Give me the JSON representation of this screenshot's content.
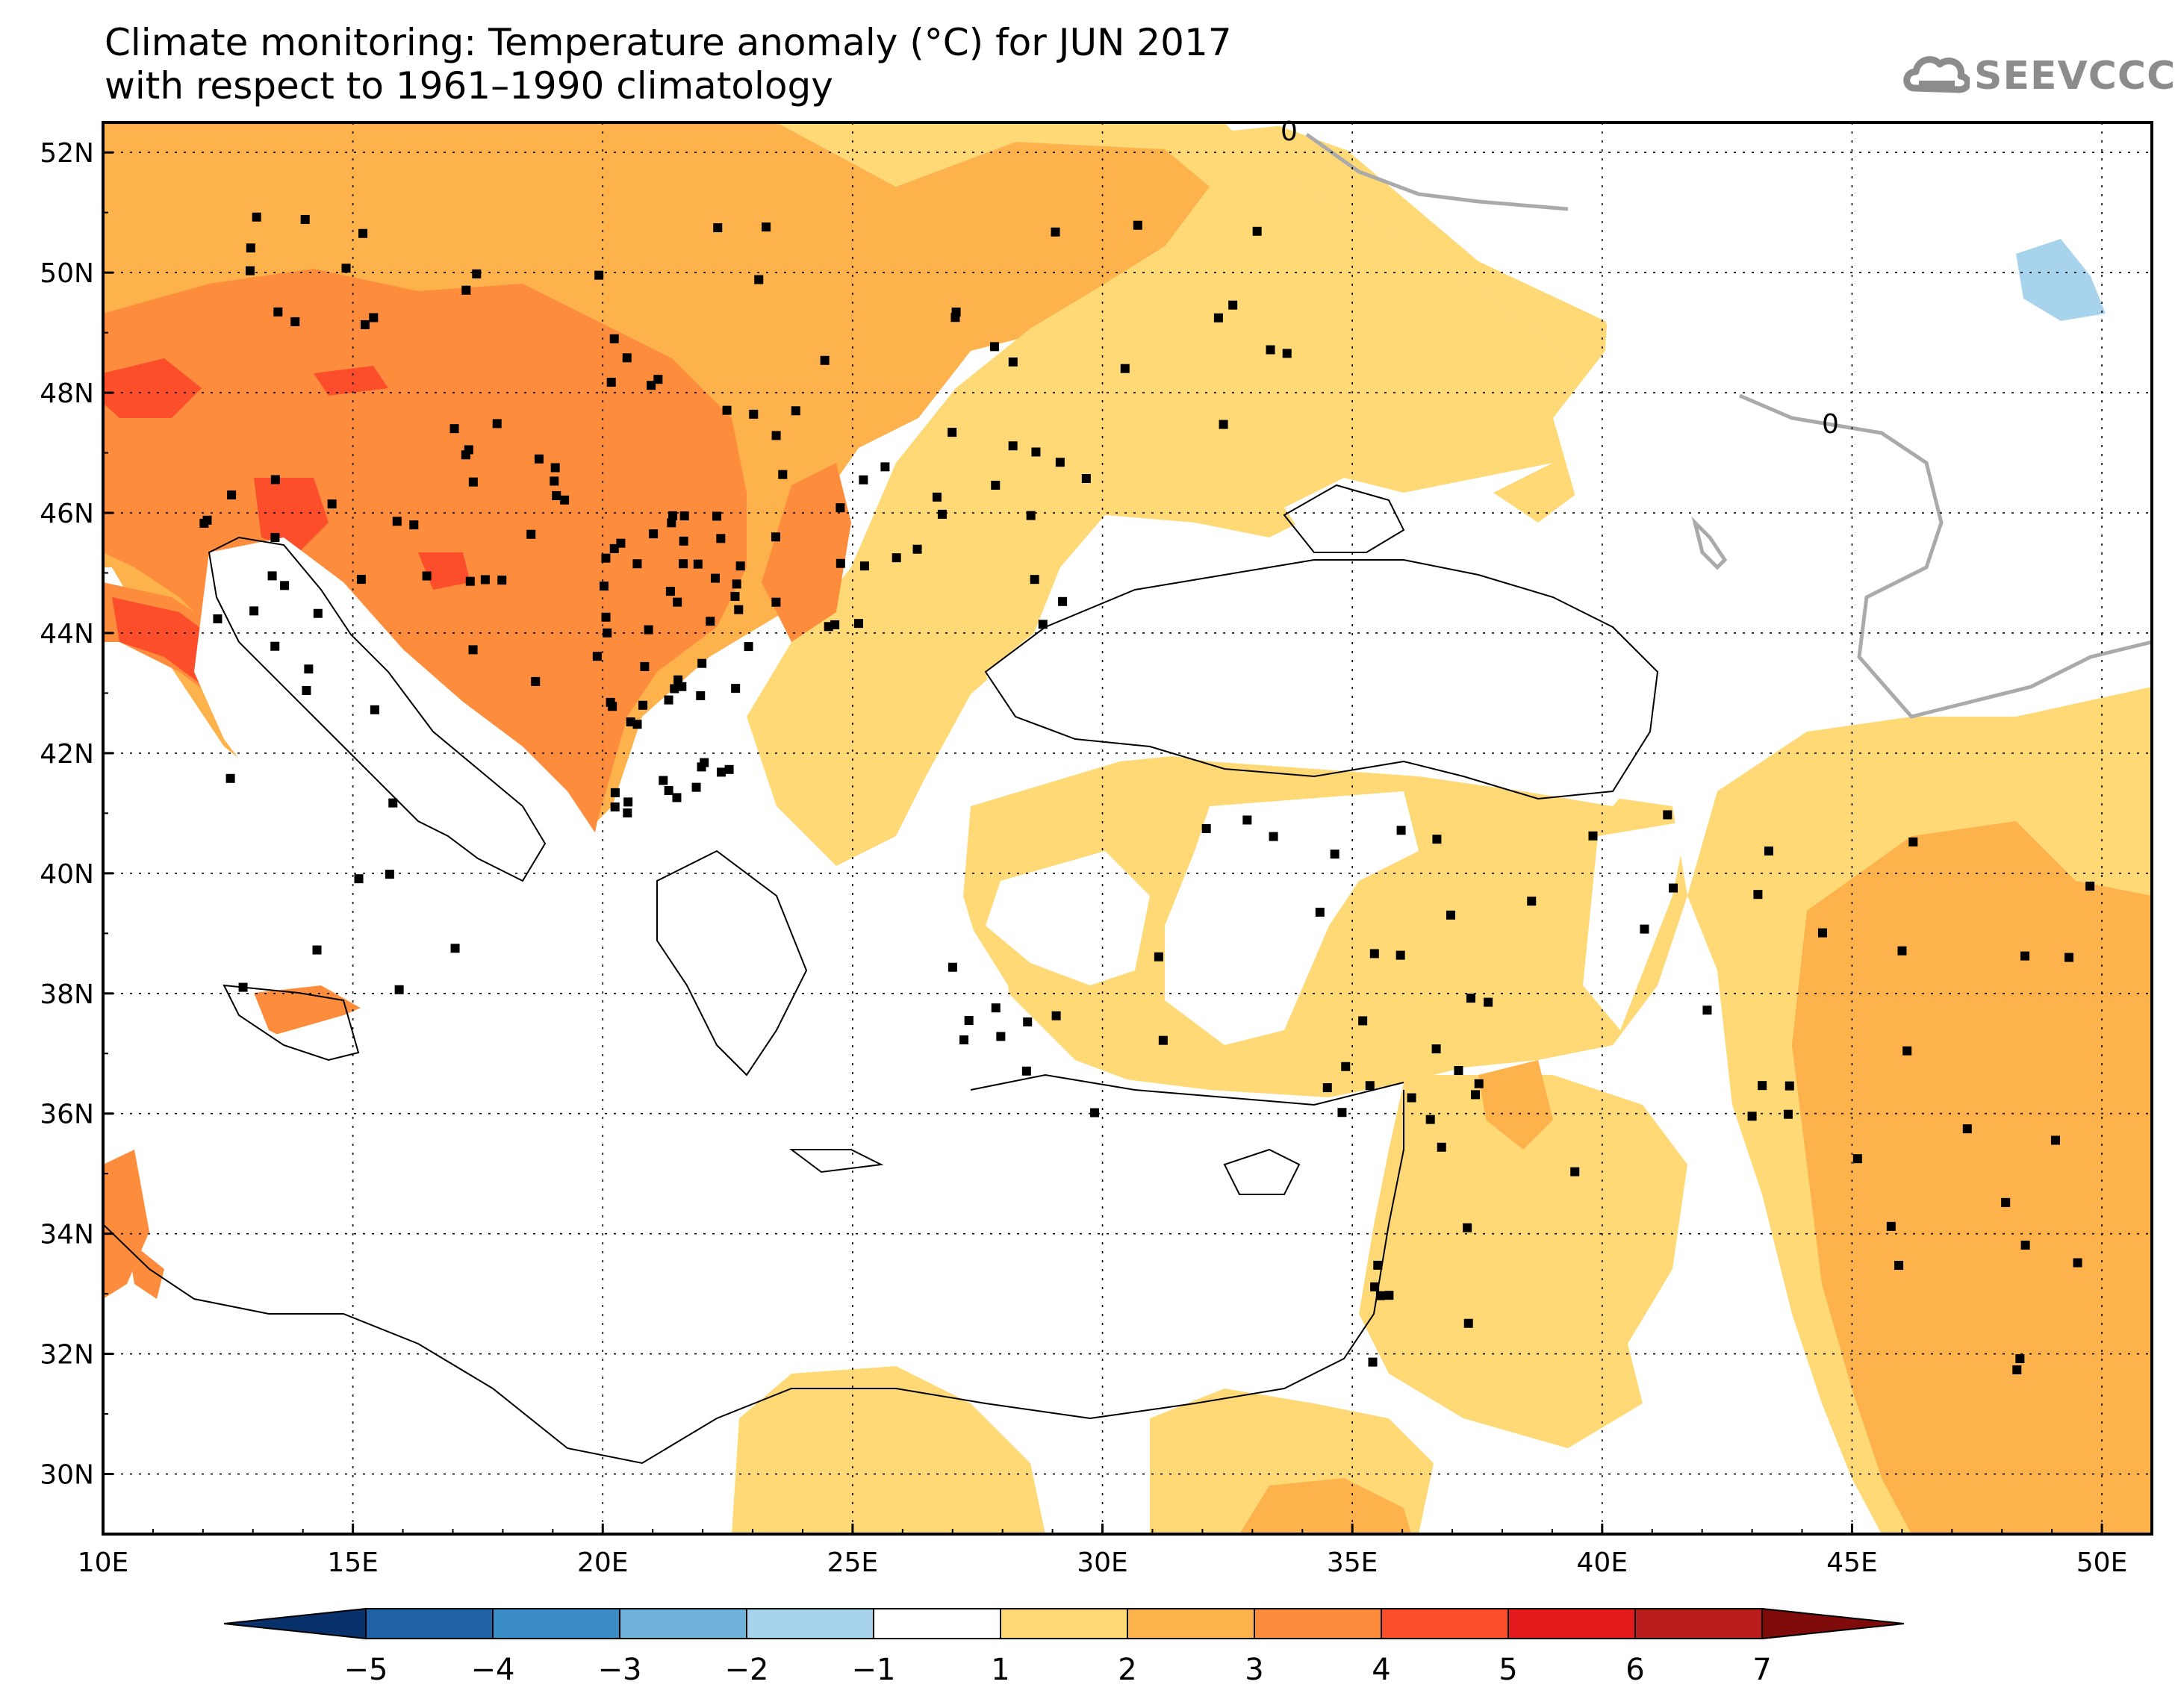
{
  "title": {
    "line1": "Climate monitoring: Temperature anomaly (°C) for JUN 2017",
    "line2": "with respect to 1961–1990 climatology"
  },
  "logo": {
    "text": "SEEVCCC",
    "icon": "cloud-icon"
  },
  "map": {
    "lon_range": [
      10,
      51
    ],
    "lat_range": [
      29,
      52.5
    ],
    "lon_ticks": [
      "10E",
      "15E",
      "20E",
      "25E",
      "30E",
      "35E",
      "40E",
      "45E",
      "50E"
    ],
    "lat_ticks": [
      "52N",
      "50N",
      "48N",
      "46N",
      "44N",
      "42N",
      "40N",
      "38N",
      "36N",
      "34N",
      "32N",
      "30N"
    ],
    "contour_labels": [
      "0",
      "0"
    ],
    "gridlines": "dotted"
  },
  "colorbar": {
    "labels": [
      "−5",
      "−4",
      "−3",
      "−2",
      "−1",
      "1",
      "2",
      "3",
      "4",
      "5",
      "6",
      "7"
    ],
    "colors": [
      "#08306b",
      "#1f63a6",
      "#3a8cc7",
      "#6fb2dc",
      "#a8d3ec",
      "#ffffff",
      "#fed976",
      "#feb24c",
      "#fd8d3c",
      "#fc4e2a",
      "#e31a1c",
      "#b91c1c",
      "#7f0b0b"
    ]
  }
}
